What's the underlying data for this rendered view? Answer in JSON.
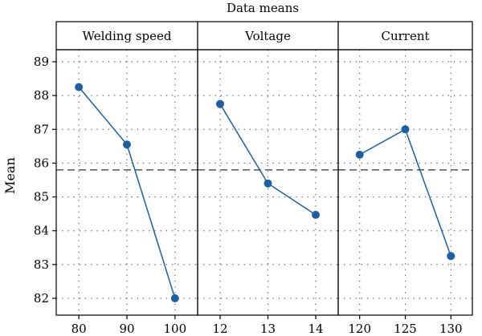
{
  "chart_data": {
    "type": "line",
    "title": "Data means",
    "ylabel": "Mean",
    "ylim": [
      81.8,
      89.3
    ],
    "yticks": [
      82,
      83,
      84,
      85,
      86,
      87,
      88,
      89
    ],
    "reference_line": {
      "value": 85.8,
      "style": "dashed"
    },
    "grid": "dotted",
    "colors": {
      "series": "#1f5fa0",
      "grid": "#555555",
      "reference": "#333333",
      "frame": "#000000"
    },
    "panels": [
      {
        "name": "Welding speed",
        "x": [
          "80",
          "90",
          "100"
        ],
        "values": [
          88.25,
          86.55,
          82.0
        ]
      },
      {
        "name": "Voltage",
        "x": [
          "12",
          "13",
          "14"
        ],
        "values": [
          87.75,
          85.4,
          84.47
        ]
      },
      {
        "name": "Current",
        "x": [
          "120",
          "125",
          "130"
        ],
        "values": [
          86.25,
          87.0,
          83.25
        ]
      }
    ]
  }
}
